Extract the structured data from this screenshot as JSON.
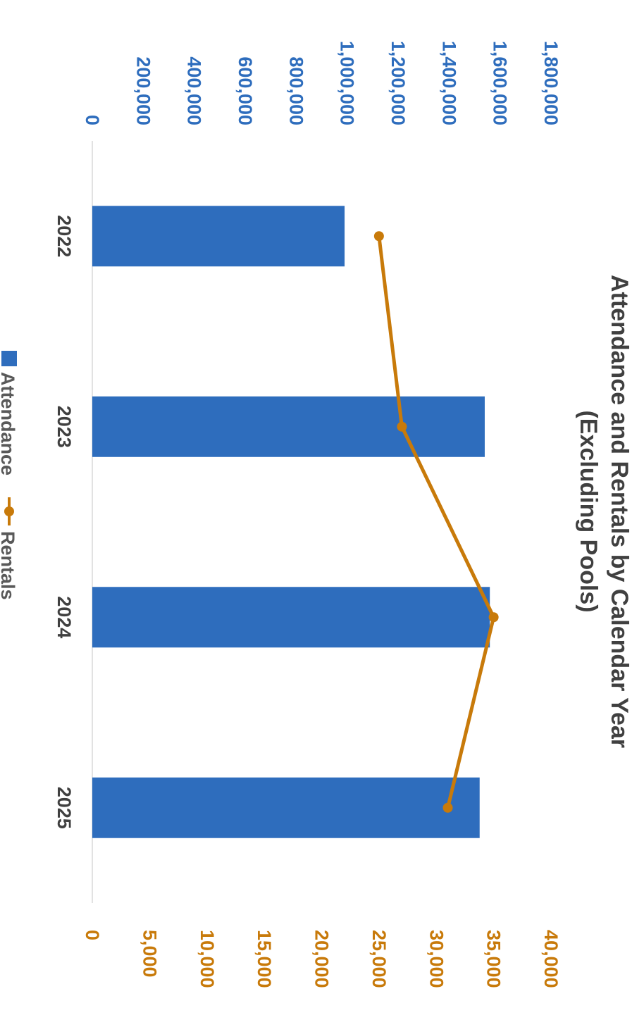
{
  "chart_data": {
    "type": "bar",
    "title": [
      "Attendance and Rentals by Calendar Year",
      "(Excluding Pools)"
    ],
    "categories": [
      "2022",
      "2023",
      "2024",
      "2025"
    ],
    "series": [
      {
        "name": "Attendance",
        "kind": "bar",
        "axis": "primary",
        "color": "#2E6DBD",
        "values": [
          990000,
          1540000,
          1560000,
          1520000
        ]
      },
      {
        "name": "Rentals",
        "kind": "line",
        "axis": "secondary",
        "color": "#C87A0A",
        "values": [
          25000,
          27000,
          35000,
          31000
        ]
      }
    ],
    "primary_axis": {
      "min": 0,
      "max": 1800000,
      "ticks": [
        "0",
        "200,000",
        "400,000",
        "600,000",
        "800,000",
        "1,000,000",
        "1,200,000",
        "1,400,000",
        "1,600,000",
        "1,800,000"
      ],
      "color": "#2E6DBD"
    },
    "secondary_axis": {
      "min": 0,
      "max": 40000,
      "ticks": [
        "0",
        "5,000",
        "10,000",
        "15,000",
        "20,000",
        "25,000",
        "30,000",
        "35,000",
        "40,000"
      ],
      "color": "#C87A0A"
    },
    "legend": {
      "placement": "bottom",
      "items": [
        "Attendance",
        "Rentals"
      ]
    },
    "grid": false,
    "orientation": "rotated-90-clockwise"
  }
}
